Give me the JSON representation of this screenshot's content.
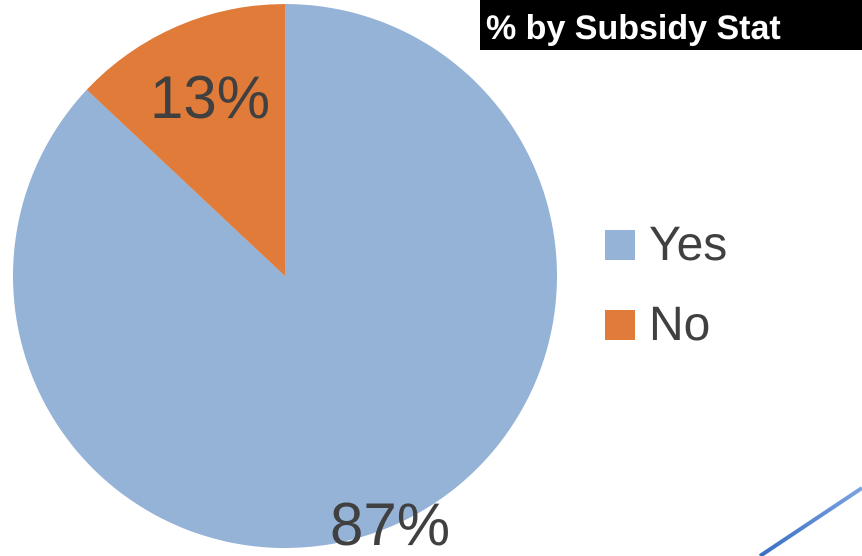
{
  "chart_data": {
    "type": "pie",
    "title": "% by Subsidy Stat",
    "categories": [
      "Yes",
      "No"
    ],
    "values": [
      87,
      13
    ],
    "data_labels": [
      "87%",
      "13%"
    ],
    "colors": [
      "#95b3d7",
      "#e07b39"
    ],
    "legend_position": "right"
  }
}
